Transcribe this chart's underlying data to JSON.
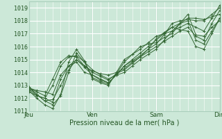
{
  "xlabel": "Pression niveau de la mer( hPa )",
  "ylim": [
    1011,
    1019.5
  ],
  "xlim": [
    0,
    72
  ],
  "yticks": [
    1011,
    1012,
    1013,
    1014,
    1015,
    1016,
    1017,
    1018,
    1019
  ],
  "xtick_positions": [
    0,
    24,
    48,
    72
  ],
  "xtick_labels": [
    "Jeu",
    "Ven",
    "Sam",
    "Dim"
  ],
  "bg_color": "#cce8d8",
  "grid_major_color": "#ffffff",
  "grid_minor_color": "#ddf0e8",
  "line_color": "#336633",
  "series": [
    [
      0,
      1012.8,
      3,
      1012.5,
      6,
      1012.2,
      9,
      1013.5,
      12,
      1014.8,
      15,
      1015.3,
      18,
      1015.2,
      21,
      1014.5,
      24,
      1014.1,
      27,
      1013.9,
      30,
      1013.8,
      33,
      1014.0,
      36,
      1014.3,
      39,
      1014.8,
      42,
      1015.2,
      45,
      1015.8,
      48,
      1016.2,
      51,
      1016.9,
      54,
      1017.8,
      57,
      1018.0,
      60,
      1018.1,
      63,
      1018.0,
      66,
      1018.0,
      69,
      1018.5,
      72,
      1019.0
    ],
    [
      0,
      1012.9,
      3,
      1012.3,
      6,
      1011.8,
      9,
      1011.5,
      12,
      1012.2,
      15,
      1014.0,
      18,
      1015.5,
      21,
      1014.8,
      24,
      1014.2,
      27,
      1013.8,
      30,
      1013.5,
      33,
      1013.8,
      36,
      1014.0,
      39,
      1014.5,
      42,
      1015.0,
      45,
      1015.4,
      48,
      1015.8,
      51,
      1016.5,
      54,
      1017.2,
      57,
      1017.8,
      60,
      1018.2,
      63,
      1018.2,
      66,
      1018.1,
      69,
      1018.3,
      72,
      1018.5
    ],
    [
      0,
      1012.7,
      3,
      1012.2,
      6,
      1012.0,
      9,
      1011.7,
      12,
      1013.5,
      15,
      1014.5,
      18,
      1014.8,
      21,
      1014.0,
      24,
      1013.8,
      27,
      1013.4,
      30,
      1013.2,
      33,
      1013.8,
      36,
      1014.5,
      39,
      1015.0,
      42,
      1015.5,
      45,
      1016.0,
      48,
      1016.5,
      51,
      1017.0,
      54,
      1017.5,
      57,
      1017.8,
      60,
      1018.0,
      63,
      1016.5,
      66,
      1016.2,
      69,
      1017.2,
      72,
      1018.2
    ],
    [
      0,
      1012.8,
      3,
      1012.6,
      6,
      1012.5,
      9,
      1012.3,
      12,
      1013.8,
      15,
      1014.5,
      18,
      1015.0,
      21,
      1014.5,
      24,
      1014.0,
      27,
      1013.7,
      30,
      1013.4,
      33,
      1013.9,
      36,
      1014.2,
      39,
      1014.7,
      42,
      1015.2,
      45,
      1015.6,
      48,
      1016.0,
      51,
      1016.4,
      54,
      1016.8,
      57,
      1017.2,
      60,
      1017.5,
      63,
      1016.8,
      66,
      1016.5,
      69,
      1017.8,
      72,
      1018.8
    ],
    [
      0,
      1012.6,
      3,
      1012.0,
      6,
      1011.5,
      9,
      1011.2,
      12,
      1012.3,
      15,
      1014.8,
      18,
      1015.8,
      21,
      1014.9,
      24,
      1013.5,
      27,
      1013.2,
      30,
      1013.0,
      33,
      1014.0,
      36,
      1015.0,
      39,
      1015.4,
      42,
      1015.8,
      45,
      1016.3,
      48,
      1016.8,
      51,
      1017.0,
      54,
      1017.2,
      57,
      1017.5,
      60,
      1017.8,
      63,
      1017.5,
      66,
      1017.2,
      69,
      1018.2,
      72,
      1019.2
    ],
    [
      0,
      1012.5,
      3,
      1012.2,
      6,
      1012.0,
      9,
      1013.0,
      12,
      1014.5,
      15,
      1015.2,
      18,
      1015.3,
      21,
      1014.8,
      24,
      1013.6,
      27,
      1013.3,
      30,
      1013.1,
      33,
      1013.9,
      36,
      1014.8,
      39,
      1015.4,
      42,
      1016.0,
      45,
      1016.2,
      48,
      1016.3,
      51,
      1016.7,
      54,
      1017.0,
      57,
      1017.8,
      60,
      1018.5,
      63,
      1016.9,
      66,
      1016.8,
      69,
      1017.5,
      72,
      1018.0
    ],
    [
      0,
      1012.8,
      3,
      1012.3,
      6,
      1011.8,
      9,
      1011.9,
      12,
      1013.0,
      15,
      1014.2,
      18,
      1015.0,
      21,
      1014.4,
      24,
      1013.8,
      27,
      1013.5,
      30,
      1013.2,
      33,
      1013.8,
      36,
      1014.5,
      39,
      1014.9,
      42,
      1015.3,
      45,
      1015.8,
      48,
      1016.6,
      51,
      1017.1,
      54,
      1017.5,
      57,
      1017.3,
      60,
      1017.2,
      63,
      1016.0,
      66,
      1015.8,
      69,
      1017.0,
      72,
      1018.2
    ]
  ]
}
